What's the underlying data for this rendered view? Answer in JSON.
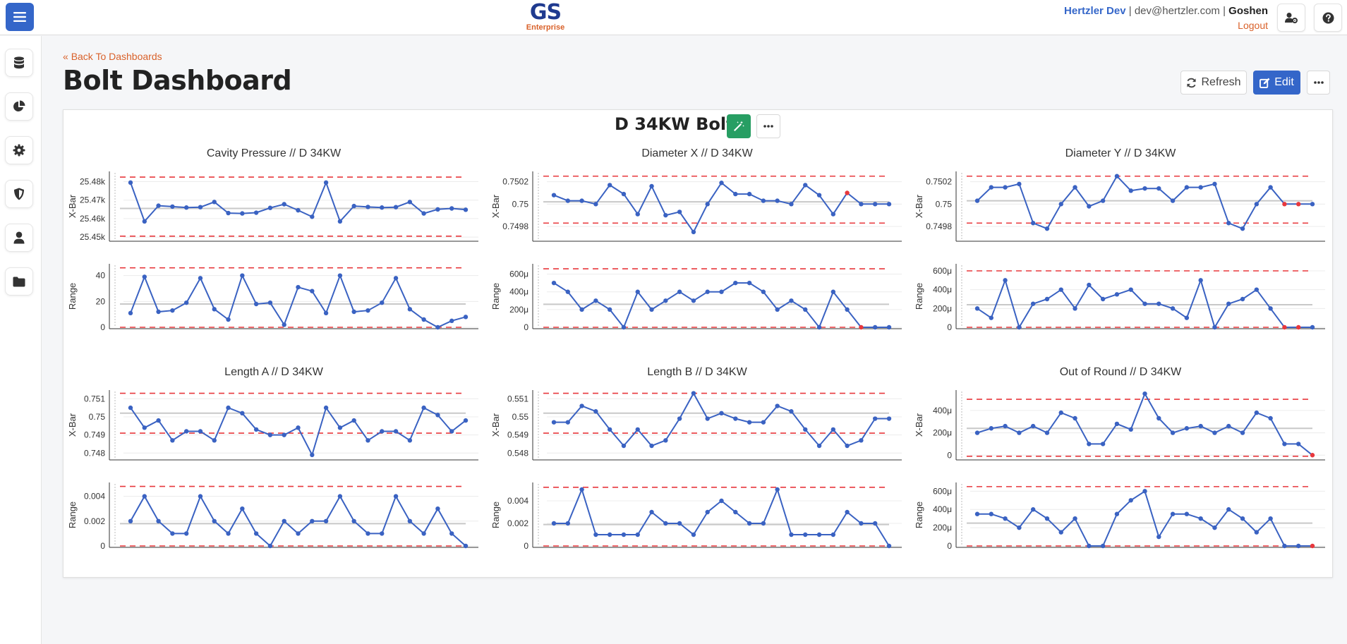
{
  "header": {
    "logo_main": "GS",
    "logo_sub": "Enterprise",
    "user_name": "Hertzler Dev",
    "separator1": " | ",
    "email": "dev@hertzler.com",
    "separator2": " | ",
    "location": "Goshen",
    "logout_label": "Logout"
  },
  "sidebar": {
    "items": [
      {
        "icon": "database-icon"
      },
      {
        "icon": "pie-chart-icon"
      },
      {
        "icon": "gear-icon"
      },
      {
        "icon": "shield-icon"
      },
      {
        "icon": "user-icon"
      },
      {
        "icon": "folder-icon"
      }
    ]
  },
  "page": {
    "back_label": "Back To Dashboards",
    "title": "Bolt Dashboard",
    "refresh_label": "Refresh",
    "edit_label": "Edit"
  },
  "card": {
    "title": "D 34KW Bolt"
  },
  "colors": {
    "accent": "#3466c9",
    "series": "#3a62c2",
    "limit": "#e8383d",
    "center": "#c8c8c8",
    "brand_orange": "#d9612a",
    "green": "#279e63"
  },
  "chart_data": [
    {
      "type": "line",
      "title": "Cavity Pressure  //  D 34KW",
      "xbar": {
        "ylabel": "X-Bar",
        "ylim": [
          25.4485,
          25.4848
        ],
        "ticks": [
          25.45,
          25.46,
          25.47,
          25.48
        ],
        "tick_labels": [
          "25.45k",
          "25.46k",
          "25.47k",
          "25.48k"
        ],
        "ucl": 25.4825,
        "lcl": 25.4505,
        "center": 25.4655,
        "values": [
          25.4795,
          25.4585,
          25.467,
          25.4665,
          25.466,
          25.4662,
          25.469,
          25.463,
          25.4628,
          25.4632,
          25.4658,
          25.4678,
          25.4645,
          25.461,
          25.4795,
          25.4585,
          25.4668,
          25.4663,
          25.466,
          25.4662,
          25.469,
          25.4628,
          25.465,
          25.4655,
          25.4648
        ],
        "red_points": []
      },
      "range": {
        "ylabel": "Range",
        "ylim": [
          0,
          48
        ],
        "ticks": [
          0,
          20,
          40
        ],
        "tick_labels": [
          "0",
          "20",
          "40"
        ],
        "ucl": 46,
        "lcl": 0,
        "center": 18,
        "values": [
          11,
          39,
          12,
          13,
          19,
          38,
          14,
          6,
          40,
          18,
          19,
          2,
          31,
          28,
          11,
          40,
          12,
          13,
          19,
          38,
          14,
          6,
          0,
          5,
          8
        ],
        "red_points": []
      }
    },
    {
      "type": "line",
      "title": "Diameter X  //  D 34KW",
      "xbar": {
        "ylabel": "X-Bar",
        "ylim": [
          0.74968,
          0.75028
        ],
        "ticks": [
          0.7498,
          0.75,
          0.7502
        ],
        "tick_labels": [
          "0.7498",
          "0.75",
          "0.7502"
        ],
        "ucl": 0.75025,
        "lcl": 0.74983,
        "center": 0.75002,
        "values": [
          0.75008,
          0.75003,
          0.75003,
          0.75,
          0.75017,
          0.75009,
          0.74991,
          0.75016,
          0.7499,
          0.74993,
          0.74975,
          0.75,
          0.75019,
          0.75009,
          0.75009,
          0.75003,
          0.75003,
          0.75,
          0.75017,
          0.75008,
          0.74991,
          0.7501,
          0.75,
          0.75,
          0.75
        ],
        "red_points": [
          21
        ]
      },
      "range": {
        "ylabel": "Range",
        "ylim": [
          0,
          0.0007
        ],
        "ticks": [
          0,
          0.0002,
          0.0004,
          0.0006
        ],
        "tick_labels": [
          "0",
          "200μ",
          "400μ",
          "600μ"
        ],
        "ucl": 0.00066,
        "lcl": 0,
        "center": 0.00026,
        "values": [
          0.0005,
          0.0004,
          0.0002,
          0.0003,
          0.0002,
          0.0,
          0.0004,
          0.0002,
          0.0003,
          0.0004,
          0.0003,
          0.0004,
          0.0004,
          0.0005,
          0.0005,
          0.0004,
          0.0002,
          0.0003,
          0.0002,
          0.0,
          0.0004,
          0.0002,
          0.0,
          0.0,
          0.0
        ],
        "red_points": [
          22
        ]
      }
    },
    {
      "type": "line",
      "title": "Diameter Y  //  D 34KW",
      "xbar": {
        "ylabel": "X-Bar",
        "ylim": [
          0.74968,
          0.75028
        ],
        "ticks": [
          0.7498,
          0.75,
          0.7502
        ],
        "tick_labels": [
          "0.7498",
          "0.75",
          "0.7502"
        ],
        "ucl": 0.75025,
        "lcl": 0.74983,
        "center": 0.75003,
        "values": [
          0.75003,
          0.75015,
          0.75015,
          0.75018,
          0.74983,
          0.74978,
          0.75,
          0.75015,
          0.74998,
          0.75003,
          0.75025,
          0.75012,
          0.75014,
          0.75014,
          0.75003,
          0.75015,
          0.75015,
          0.75018,
          0.74983,
          0.74978,
          0.75,
          0.75015,
          0.75,
          0.75,
          0.75
        ],
        "red_points": [
          22,
          23
        ]
      },
      "range": {
        "ylabel": "Range",
        "ylim": [
          0,
          0.00066
        ],
        "ticks": [
          0,
          0.0002,
          0.0004,
          0.0006
        ],
        "tick_labels": [
          "0",
          "200μ",
          "400μ",
          "600μ"
        ],
        "ucl": 0.0006,
        "lcl": 0,
        "center": 0.00024,
        "values": [
          0.0002,
          0.0001,
          0.0005,
          0.0,
          0.00025,
          0.0003,
          0.0004,
          0.0002,
          0.00045,
          0.0003,
          0.00035,
          0.0004,
          0.00025,
          0.00025,
          0.0002,
          0.0001,
          0.0005,
          0.0,
          0.00025,
          0.0003,
          0.0004,
          0.0002,
          0.0,
          0.0,
          0.0
        ],
        "red_points": [
          22,
          23
        ]
      }
    },
    {
      "type": "line",
      "title": "Length A  //  D 34KW",
      "xbar": {
        "ylabel": "X-Bar",
        "ylim": [
          0.7477,
          0.7514
        ],
        "ticks": [
          0.748,
          0.749,
          0.75,
          0.751
        ],
        "tick_labels": [
          "0.748",
          "0.749",
          "0.75",
          "0.751"
        ],
        "ucl": 0.7513,
        "lcl": 0.7491,
        "center": 0.7502,
        "values": [
          0.7505,
          0.7494,
          0.7498,
          0.7487,
          0.7492,
          0.7492,
          0.7487,
          0.7505,
          0.7502,
          0.7493,
          0.749,
          0.749,
          0.7494,
          0.7479,
          0.7505,
          0.7494,
          0.7498,
          0.7487,
          0.7492,
          0.7492,
          0.7487,
          0.7505,
          0.7501,
          0.7492,
          0.7498
        ],
        "red_points": []
      },
      "range": {
        "ylabel": "Range",
        "ylim": [
          0,
          0.005
        ],
        "ticks": [
          0,
          0.002,
          0.004
        ],
        "tick_labels": [
          "0",
          "0.002",
          "0.004"
        ],
        "ucl": 0.0048,
        "lcl": 0,
        "center": 0.0018,
        "values": [
          0.002,
          0.004,
          0.002,
          0.001,
          0.001,
          0.004,
          0.002,
          0.001,
          0.003,
          0.001,
          0.0,
          0.002,
          0.001,
          0.002,
          0.002,
          0.004,
          0.002,
          0.001,
          0.001,
          0.004,
          0.002,
          0.001,
          0.003,
          0.001,
          0.0
        ],
        "red_points": []
      }
    },
    {
      "type": "line",
      "title": "Length B  //  D 34KW",
      "xbar": {
        "ylabel": "X-Bar",
        "ylim": [
          0.5477,
          0.5514
        ],
        "ticks": [
          0.548,
          0.549,
          0.55,
          0.551
        ],
        "tick_labels": [
          "0.548",
          "0.549",
          "0.55",
          "0.551"
        ],
        "ucl": 0.5513,
        "lcl": 0.5491,
        "center": 0.5502,
        "values": [
          0.5497,
          0.5497,
          0.5506,
          0.5503,
          0.5493,
          0.5484,
          0.5493,
          0.5484,
          0.5487,
          0.5499,
          0.5513,
          0.5499,
          0.5502,
          0.5499,
          0.5497,
          0.5497,
          0.5506,
          0.5503,
          0.5493,
          0.5484,
          0.5493,
          0.5484,
          0.5487,
          0.5499,
          0.5499
        ],
        "red_points": []
      },
      "range": {
        "ylabel": "Range",
        "ylim": [
          0,
          0.0055
        ],
        "ticks": [
          0,
          0.002,
          0.004
        ],
        "tick_labels": [
          "0",
          "0.002",
          "0.004"
        ],
        "ucl": 0.0052,
        "lcl": 0,
        "center": 0.0019,
        "values": [
          0.002,
          0.002,
          0.005,
          0.001,
          0.001,
          0.001,
          0.001,
          0.003,
          0.002,
          0.002,
          0.001,
          0.003,
          0.004,
          0.003,
          0.002,
          0.002,
          0.005,
          0.001,
          0.001,
          0.001,
          0.001,
          0.003,
          0.002,
          0.002,
          0.0
        ],
        "red_points": []
      }
    },
    {
      "type": "line",
      "title": "Out of Round  //  D 34KW",
      "xbar": {
        "ylabel": "X-Bar",
        "ylim": [
          -3e-05,
          0.00057
        ],
        "ticks": [
          0,
          0.0002,
          0.0004
        ],
        "tick_labels": [
          "0",
          "200μ",
          "400μ"
        ],
        "ucl": 0.0005,
        "lcl": -1e-05,
        "center": 0.00024,
        "values": [
          0.0002,
          0.00024,
          0.00026,
          0.0002,
          0.00026,
          0.0002,
          0.00038,
          0.00033,
          0.0001,
          0.0001,
          0.00028,
          0.00023,
          0.00055,
          0.00033,
          0.0002,
          0.00024,
          0.00026,
          0.0002,
          0.00026,
          0.0002,
          0.00038,
          0.00033,
          0.0001,
          0.0001,
          0.0
        ],
        "red_points": [
          24
        ]
      },
      "range": {
        "ylabel": "Range",
        "ylim": [
          0,
          0.00068
        ],
        "ticks": [
          0,
          0.0002,
          0.0004,
          0.0006
        ],
        "tick_labels": [
          "0",
          "200μ",
          "400μ",
          "600μ"
        ],
        "ucl": 0.00065,
        "lcl": 0,
        "center": 0.00025,
        "values": [
          0.00035,
          0.00035,
          0.0003,
          0.0002,
          0.0004,
          0.0003,
          0.00015,
          0.0003,
          0.0,
          0.0,
          0.00035,
          0.0005,
          0.0006,
          0.0001,
          0.00035,
          0.00035,
          0.0003,
          0.0002,
          0.0004,
          0.0003,
          0.00015,
          0.0003,
          0.0,
          0.0,
          0.0
        ],
        "red_points": [
          24
        ]
      }
    }
  ]
}
